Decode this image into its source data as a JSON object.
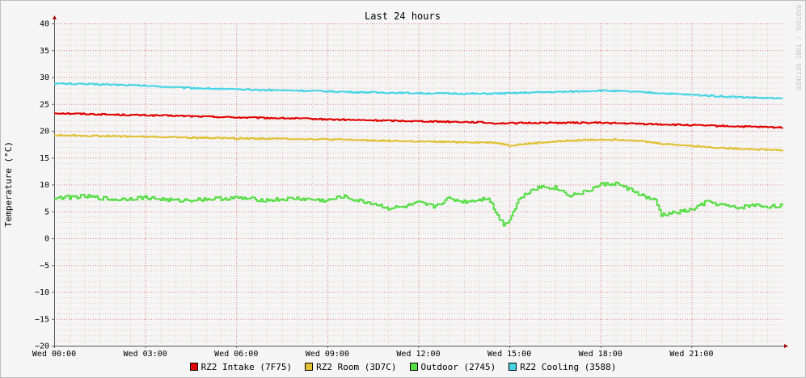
{
  "watermark": "RRDTOOL / TOBI OETIKER",
  "chart_data": {
    "type": "line",
    "title": "Last 24 hours",
    "ylabel": "Temperature (°C)",
    "xlabel": "",
    "ylim": [
      -20,
      40
    ],
    "yticks": [
      40,
      35,
      30,
      25,
      20,
      15,
      10,
      5,
      0,
      -5,
      -10,
      -15,
      -20
    ],
    "ytick_labels": [
      "40",
      "35",
      "30",
      "25",
      "20",
      "15",
      "10",
      "5",
      "0",
      "−5",
      "−10",
      "−15",
      "−20"
    ],
    "xlim": [
      0,
      24
    ],
    "xticks": [
      0,
      3,
      6,
      9,
      12,
      15,
      18,
      21
    ],
    "xtick_labels": [
      "Wed 00:00",
      "Wed 03:00",
      "Wed 06:00",
      "Wed 09:00",
      "Wed 12:00",
      "Wed 15:00",
      "Wed 18:00",
      "Wed 21:00"
    ],
    "grid": true,
    "legend_position": "bottom",
    "series": [
      {
        "name": "RZ2 Intake (7F75)",
        "color": "#e00000",
        "x": [
          0,
          2,
          4,
          6,
          8,
          10,
          12,
          14,
          14.5,
          16,
          18,
          20,
          22,
          24
        ],
        "y": [
          23.3,
          23.0,
          22.8,
          22.5,
          22.3,
          22.0,
          21.8,
          21.6,
          21.4,
          21.5,
          21.5,
          21.2,
          20.9,
          20.6
        ]
      },
      {
        "name": "RZ2 Room (3D7C)",
        "color": "#e0c030",
        "x": [
          0,
          2,
          4,
          6,
          8,
          10,
          12,
          13.5,
          14.5,
          15,
          16,
          17,
          18,
          19,
          20,
          21,
          22,
          24
        ],
        "y": [
          19.2,
          19.0,
          18.8,
          18.6,
          18.5,
          18.3,
          18.0,
          17.9,
          17.8,
          17.3,
          17.8,
          18.2,
          18.4,
          18.3,
          17.6,
          17.2,
          16.8,
          16.4
        ]
      },
      {
        "name": "Outdoor (2745)",
        "color": "#55dd44",
        "x": [
          0,
          1,
          2,
          3,
          4,
          5,
          6,
          7,
          8,
          9,
          9.5,
          10,
          10.5,
          11,
          11.5,
          12,
          12.5,
          13,
          13.5,
          14,
          14.3,
          14.6,
          14.8,
          15.0,
          15.3,
          15.7,
          16,
          16.5,
          17,
          17.5,
          18,
          18.5,
          19,
          19.5,
          19.8,
          20,
          20.5,
          21,
          21.5,
          22,
          22.5,
          23,
          23.5,
          24
        ],
        "y": [
          7.5,
          7.8,
          7.2,
          7.6,
          7.0,
          7.3,
          7.5,
          7.1,
          7.4,
          7.0,
          7.8,
          7.0,
          6.5,
          5.6,
          5.8,
          6.6,
          5.9,
          7.4,
          6.8,
          7.2,
          7.6,
          4.2,
          2.6,
          3.5,
          7.2,
          9.0,
          9.6,
          9.4,
          8.0,
          8.6,
          10.0,
          10.2,
          9.0,
          7.6,
          7.0,
          4.3,
          4.8,
          5.3,
          6.8,
          6.2,
          5.6,
          6.2,
          5.9,
          6.1
        ]
      },
      {
        "name": "RZ2 Cooling (3588)",
        "color": "#44d4e4",
        "x": [
          0,
          1,
          2,
          3,
          4,
          5,
          6,
          8,
          10,
          12,
          14,
          15,
          16,
          17,
          18,
          19,
          20,
          21,
          22,
          23,
          24
        ],
        "y": [
          28.8,
          28.7,
          28.6,
          28.4,
          28.1,
          27.9,
          27.7,
          27.5,
          27.2,
          27.0,
          26.9,
          27.0,
          27.2,
          27.3,
          27.5,
          27.3,
          27.0,
          26.7,
          26.4,
          26.2,
          26.0
        ]
      }
    ]
  }
}
